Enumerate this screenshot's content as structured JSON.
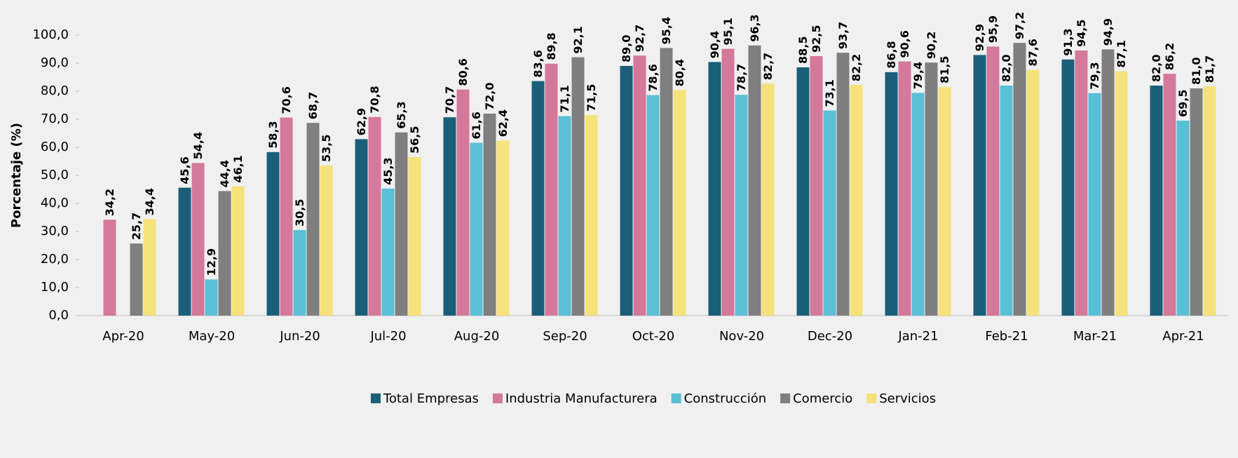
{
  "chart_data": {
    "type": "bar",
    "y_label": "Porcentaje (%)",
    "categories": [
      "Apr-20",
      "May-20",
      "Jun-20",
      "Jul-20",
      "Aug-20",
      "Sep-20",
      "Oct-20",
      "Nov-20",
      "Dec-20",
      "Jan-21",
      "Feb-21",
      "Mar-21",
      "Apr-21"
    ],
    "series": [
      {
        "name": "Total Empresas",
        "color": "#1a5f7a",
        "values": [
          null,
          45.6,
          58.3,
          62.9,
          70.7,
          83.6,
          89.0,
          90.4,
          88.5,
          86.8,
          92.9,
          91.3,
          82.0
        ],
        "value_labels": [
          null,
          "45,6",
          "58,3",
          "62,9",
          "70,7",
          "83,6",
          "89,0",
          "90,4",
          "88,5",
          "86,8",
          "92,9",
          "91,3",
          "82,0"
        ]
      },
      {
        "name": "Industria Manufacturera",
        "color": "#d4799a",
        "values": [
          34.2,
          54.4,
          70.6,
          70.8,
          80.6,
          89.8,
          92.7,
          95.1,
          92.5,
          90.6,
          95.9,
          94.5,
          86.2
        ],
        "value_labels": [
          "34,2",
          "54,4",
          "70,6",
          "70,8",
          "80,6",
          "89,8",
          "92,7",
          "95,1",
          "92,5",
          "90,6",
          "95,9",
          "94,5",
          "86,2"
        ]
      },
      {
        "name": "Construcción",
        "color": "#5bbfd6",
        "values": [
          null,
          12.9,
          30.5,
          45.3,
          61.6,
          71.1,
          78.6,
          78.7,
          73.1,
          79.4,
          82.0,
          79.3,
          69.5
        ],
        "value_labels": [
          null,
          "12,9",
          "30,5",
          "45,3",
          "61,6",
          "71,1",
          "78,6",
          "78,7",
          "73,1",
          "79,4",
          "82,0",
          "79,3",
          "69,5"
        ]
      },
      {
        "name": "Comercio",
        "color": "#7f7f7f",
        "values": [
          25.7,
          44.4,
          68.7,
          65.3,
          72.0,
          92.1,
          95.4,
          96.3,
          93.7,
          90.2,
          97.2,
          94.9,
          81.0
        ],
        "value_labels": [
          "25,7",
          "44,4",
          "68,7",
          "65,3",
          "72,0",
          "92,1",
          "95,4",
          "96,3",
          "93,7",
          "90,2",
          "97,2",
          "94,9",
          "81,0"
        ]
      },
      {
        "name": "Servicios",
        "color": "#f5e27a",
        "values": [
          34.4,
          46.1,
          53.5,
          56.5,
          62.4,
          71.5,
          80.4,
          82.7,
          82.2,
          81.5,
          87.6,
          87.1,
          81.7
        ],
        "value_labels": [
          "34,4",
          "46,1",
          "53,5",
          "56,5",
          "62,4",
          "71,5",
          "80,4",
          "82,7",
          "82,2",
          "81,5",
          "87,6",
          "87,1",
          "81,7"
        ]
      }
    ],
    "ylim": [
      0,
      100
    ],
    "yticks": [
      {
        "value": 0,
        "label": "0,0"
      },
      {
        "value": 10,
        "label": "10,0"
      },
      {
        "value": 20,
        "label": "20,0"
      },
      {
        "value": 30,
        "label": "30,0"
      },
      {
        "value": 40,
        "label": "40,0"
      },
      {
        "value": 50,
        "label": "50,0"
      },
      {
        "value": 60,
        "label": "60,0"
      },
      {
        "value": 70,
        "label": "70,0"
      },
      {
        "value": 80,
        "label": "80,0"
      },
      {
        "value": 90,
        "label": "90,0"
      },
      {
        "value": 100,
        "label": "100,0"
      }
    ],
    "grid": false,
    "legend": "bottom"
  }
}
